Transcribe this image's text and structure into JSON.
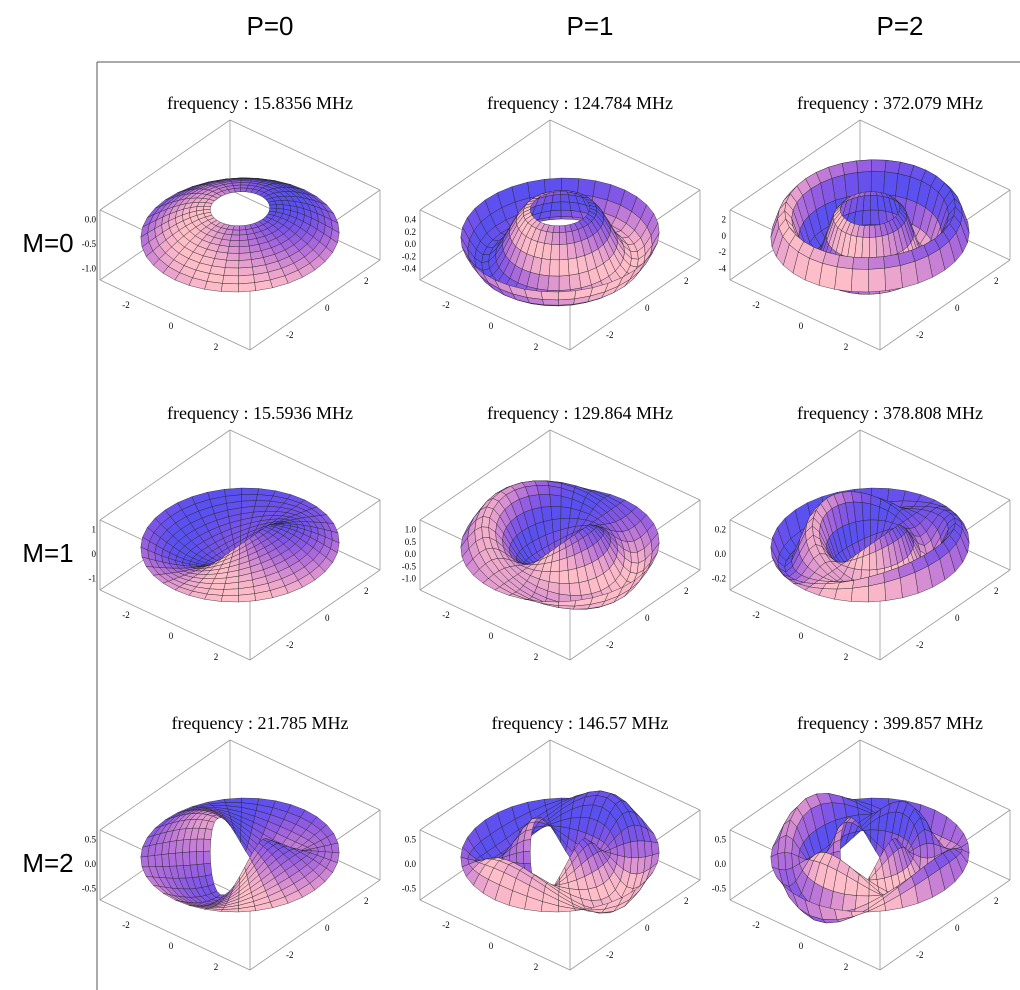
{
  "column_headers": [
    "P=0",
    "P=1",
    "P=2"
  ],
  "row_headers": [
    "M=0",
    "M=1",
    "M=2"
  ],
  "panels": [
    {
      "title": "frequency : 15.8356 MHz",
      "z_ticks": [
        "0.0",
        "-0.5",
        "-1.0"
      ],
      "x_ticks": [
        "-2",
        "0",
        "2"
      ],
      "y_ticks": [
        "2",
        "0",
        "-2"
      ]
    },
    {
      "title": "frequency : 124.784 MHz",
      "z_ticks": [
        "0.4",
        "0.2",
        "0.0",
        "-0.2",
        "-0.4"
      ],
      "x_ticks": [
        "-2",
        "0",
        "2"
      ],
      "y_ticks": [
        "2",
        "0",
        "-2"
      ]
    },
    {
      "title": "frequency : 372.079 MHz",
      "z_ticks": [
        "2",
        "0",
        "-2",
        "-4"
      ],
      "x_ticks": [
        "-2",
        "0",
        "2"
      ],
      "y_ticks": [
        "2",
        "0",
        "-2"
      ]
    },
    {
      "title": "frequency : 15.5936 MHz",
      "z_ticks": [
        "1",
        "0",
        "-1"
      ],
      "x_ticks": [
        "-2",
        "0",
        "2"
      ],
      "y_ticks": [
        "2",
        "0",
        "-2"
      ]
    },
    {
      "title": "frequency : 129.864 MHz",
      "z_ticks": [
        "1.0",
        "0.5",
        "0.0",
        "-0.5",
        "-1.0"
      ],
      "x_ticks": [
        "-2",
        "0",
        "2"
      ],
      "y_ticks": [
        "2",
        "0",
        "-2"
      ]
    },
    {
      "title": "frequency : 378.808 MHz",
      "z_ticks": [
        "0.2",
        "0.0",
        "-0.2"
      ],
      "x_ticks": [
        "-2",
        "0",
        "2"
      ],
      "y_ticks": [
        "2",
        "0",
        "-2"
      ]
    },
    {
      "title": "frequency : 21.785 MHz",
      "z_ticks": [
        "0.5",
        "0.0",
        "-0.5"
      ],
      "x_ticks": [
        "-2",
        "0",
        "2"
      ],
      "y_ticks": [
        "2",
        "0",
        "-2"
      ]
    },
    {
      "title": "frequency : 146.57 MHz",
      "z_ticks": [
        "0.5",
        "0.0",
        "-0.5"
      ],
      "x_ticks": [
        "-2",
        "0",
        "2"
      ],
      "y_ticks": [
        "2",
        "0",
        "-2"
      ]
    },
    {
      "title": "frequency : 399.857 MHz",
      "z_ticks": [
        "0.5",
        "0.0",
        "-0.5"
      ],
      "x_ticks": [
        "-2",
        "0",
        "2"
      ],
      "y_ticks": [
        "2",
        "0",
        "-2"
      ]
    }
  ]
}
